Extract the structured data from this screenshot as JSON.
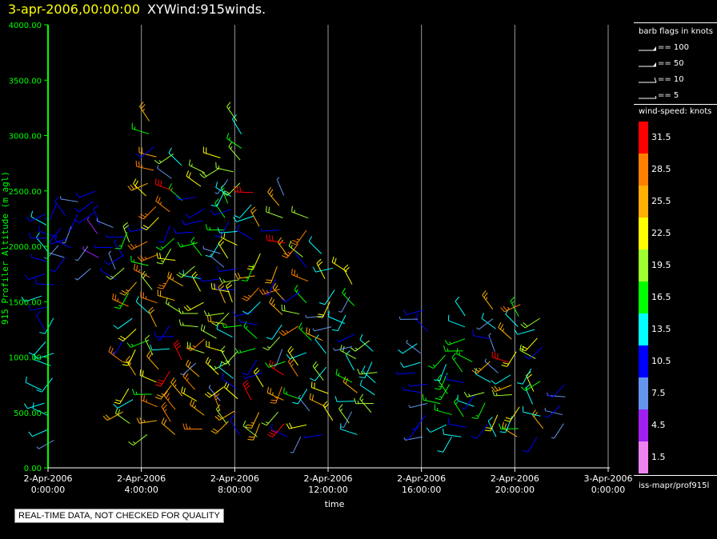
{
  "header": {
    "date": "3-apr-2006,00:00:00",
    "name": "XYWind:915winds."
  },
  "chart_data": {
    "type": "scatter",
    "plot_style": "wind barbs",
    "ylabel": "915 Profiler Altitude (m agl)",
    "xlabel": "time",
    "ylim": [
      0,
      4000
    ],
    "xlim_hours": [
      0,
      24
    ],
    "yticks": [
      "0.00",
      "500.00",
      "1000.00",
      "1500.00",
      "2000.00",
      "2500.00",
      "3000.00",
      "3500.00",
      "4000.00"
    ],
    "xticks": [
      {
        "line1": "2-Apr-2006",
        "line2": "0:00:00"
      },
      {
        "line1": "2-Apr-2006",
        "line2": "4:00:00"
      },
      {
        "line1": "2-Apr-2006",
        "line2": "8:00:00"
      },
      {
        "line1": "2-Apr-2006",
        "line2": "12:00:00"
      },
      {
        "line1": "2-Apr-2006",
        "line2": "16:00:00"
      },
      {
        "line1": "2-Apr-2006",
        "line2": "20:00:00"
      },
      {
        "line1": "3-Apr-2006",
        "line2": "0:00:00"
      }
    ],
    "barb_flags": {
      "title": "barb flags in knots",
      "items": [
        "== 100",
        "== 50",
        "== 10",
        "== 5"
      ]
    },
    "colorbar": {
      "title": "wind-speed: knots",
      "levels": [
        {
          "label": "31.5",
          "color": "#ff0000"
        },
        {
          "label": "28.5",
          "color": "#ff8000"
        },
        {
          "label": "25.5",
          "color": "#ffb000"
        },
        {
          "label": "22.5",
          "color": "#ffff00"
        },
        {
          "label": "19.5",
          "color": "#a0ff30"
        },
        {
          "label": "16.5",
          "color": "#00ff00"
        },
        {
          "label": "13.5",
          "color": "#00ffff"
        },
        {
          "label": "10.5",
          "color": "#0000ff"
        },
        {
          "label": "7.5",
          "color": "#6495ed"
        },
        {
          "label": "4.5",
          "color": "#a020f0"
        },
        {
          "label": "1.5",
          "color": "#ee82ee"
        }
      ]
    },
    "series": [
      {
        "hour": 0.0,
        "min_alt": 250,
        "max_alt": 2380,
        "speed_range": [
          8,
          14
        ]
      },
      {
        "hour": 0.5,
        "min_alt": 1900,
        "max_alt": 2450,
        "speed_range": [
          8,
          12
        ]
      },
      {
        "hour": 1.0,
        "min_alt": 1900,
        "max_alt": 2450,
        "speed_range": [
          6,
          12
        ]
      },
      {
        "hour": 2.0,
        "min_alt": 1800,
        "max_alt": 2500,
        "speed_range": [
          5,
          12
        ]
      },
      {
        "hour": 3.0,
        "min_alt": 1700,
        "max_alt": 2250,
        "speed_range": [
          6,
          11
        ]
      },
      {
        "hour": 3.5,
        "min_alt": 400,
        "max_alt": 2200,
        "speed_range": [
          8,
          30
        ]
      },
      {
        "hour": 4.5,
        "min_alt": 300,
        "max_alt": 3200,
        "speed_range": [
          10,
          30
        ]
      },
      {
        "hour": 5.5,
        "min_alt": 300,
        "max_alt": 2850,
        "speed_range": [
          8,
          32
        ]
      },
      {
        "hour": 6.5,
        "min_alt": 350,
        "max_alt": 2750,
        "speed_range": [
          8,
          30
        ]
      },
      {
        "hour": 7.5,
        "min_alt": 400,
        "max_alt": 2800,
        "speed_range": [
          6,
          28
        ]
      },
      {
        "hour": 8.0,
        "min_alt": 300,
        "max_alt": 3200,
        "speed_range": [
          10,
          25
        ]
      },
      {
        "hour": 9.0,
        "min_alt": 280,
        "max_alt": 2500,
        "speed_range": [
          8,
          32
        ]
      },
      {
        "hour": 10.0,
        "min_alt": 280,
        "max_alt": 2500,
        "speed_range": [
          8,
          32
        ]
      },
      {
        "hour": 11.0,
        "min_alt": 280,
        "max_alt": 2350,
        "speed_range": [
          8,
          31
        ]
      },
      {
        "hour": 12.0,
        "min_alt": 300,
        "max_alt": 2000,
        "speed_range": [
          8,
          30
        ]
      },
      {
        "hour": 13.0,
        "min_alt": 300,
        "max_alt": 1800,
        "speed_range": [
          6,
          25
        ]
      },
      {
        "hour": 14.0,
        "min_alt": 500,
        "max_alt": 1200,
        "speed_range": [
          12,
          20
        ]
      },
      {
        "hour": 16.0,
        "min_alt": 280,
        "max_alt": 1500,
        "speed_range": [
          6,
          13
        ]
      },
      {
        "hour": 17.0,
        "min_alt": 280,
        "max_alt": 1100,
        "speed_range": [
          8,
          18
        ]
      },
      {
        "hour": 18.0,
        "min_alt": 280,
        "max_alt": 1400,
        "speed_range": [
          8,
          18
        ]
      },
      {
        "hour": 19.0,
        "min_alt": 280,
        "max_alt": 1450,
        "speed_range": [
          8,
          28
        ]
      },
      {
        "hour": 20.0,
        "min_alt": 280,
        "max_alt": 1500,
        "speed_range": [
          10,
          31
        ]
      },
      {
        "hour": 21.0,
        "min_alt": 280,
        "max_alt": 1400,
        "speed_range": [
          10,
          25
        ]
      },
      {
        "hour": 22.0,
        "min_alt": 400,
        "max_alt": 800,
        "speed_range": [
          8,
          11
        ]
      }
    ]
  },
  "footer": {
    "quality_note": "REAL-TIME DATA, NOT CHECKED FOR QUALITY",
    "source_id": "iss-mapr/prof915l"
  }
}
